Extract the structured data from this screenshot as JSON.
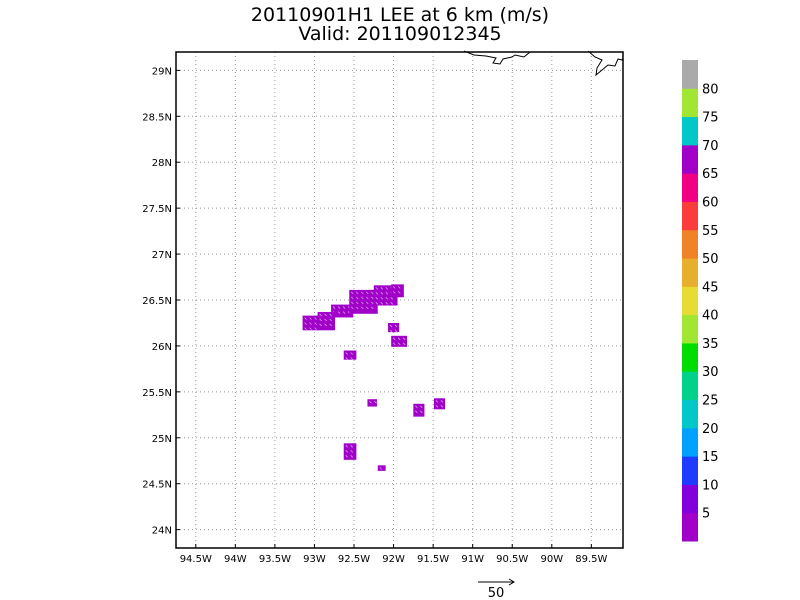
{
  "title": "20110901H1 LEE at 6 km (m/s)",
  "subtitle": "Valid: 201109012345",
  "map": {
    "lon_range": [
      -94.75,
      -89.1
    ],
    "lat_range": [
      23.8,
      29.2
    ],
    "lon_ticks": [
      "94.5W",
      "94W",
      "93.5W",
      "93W",
      "92.5W",
      "92W",
      "91.5W",
      "91W",
      "90.5W",
      "90W",
      "89.5W"
    ],
    "lon_values": [
      -94.5,
      -94,
      -93.5,
      -93,
      -92.5,
      -92,
      -91.5,
      -91,
      -90.5,
      -90,
      -89.5
    ],
    "lat_ticks": [
      "24N",
      "24.5N",
      "25N",
      "25.5N",
      "26N",
      "26.5N",
      "27N",
      "27.5N",
      "28N",
      "28.5N",
      "29N"
    ],
    "lat_values": [
      24,
      24.5,
      25,
      25.5,
      26,
      26.5,
      27,
      27.5,
      28,
      28.5,
      29
    ],
    "grid": "dotted",
    "data_color": "#a000c8",
    "patches": [
      {
        "lon": -92.65,
        "lat": 26.38,
        "dlon": 0.28,
        "dlat": 0.14
      },
      {
        "lon": -92.38,
        "lat": 26.48,
        "dlon": 0.36,
        "dlat": 0.26
      },
      {
        "lon": -92.1,
        "lat": 26.55,
        "dlon": 0.3,
        "dlat": 0.22
      },
      {
        "lon": -91.95,
        "lat": 26.6,
        "dlon": 0.16,
        "dlat": 0.14
      },
      {
        "lon": -92.85,
        "lat": 26.27,
        "dlon": 0.22,
        "dlat": 0.2
      },
      {
        "lon": -93.05,
        "lat": 26.25,
        "dlon": 0.2,
        "dlat": 0.16
      },
      {
        "lon": -92.0,
        "lat": 26.2,
        "dlon": 0.14,
        "dlat": 0.1
      },
      {
        "lon": -91.93,
        "lat": 26.05,
        "dlon": 0.2,
        "dlat": 0.12
      },
      {
        "lon": -92.55,
        "lat": 25.9,
        "dlon": 0.16,
        "dlat": 0.1
      },
      {
        "lon": -92.27,
        "lat": 25.38,
        "dlon": 0.12,
        "dlat": 0.08
      },
      {
        "lon": -91.68,
        "lat": 25.3,
        "dlon": 0.14,
        "dlat": 0.14
      },
      {
        "lon": -91.42,
        "lat": 25.37,
        "dlon": 0.14,
        "dlat": 0.12
      },
      {
        "lon": -92.55,
        "lat": 24.85,
        "dlon": 0.16,
        "dlat": 0.18
      },
      {
        "lon": -92.15,
        "lat": 24.67,
        "dlon": 0.1,
        "dlat": 0.06
      }
    ]
  },
  "colorbar": {
    "colors": [
      "#a000c8",
      "#8200dc",
      "#1e3cff",
      "#00a0ff",
      "#00c8c8",
      "#00d28c",
      "#00dc00",
      "#a0e632",
      "#e6dc32",
      "#e6af2d",
      "#f08228",
      "#fa3c3c",
      "#f00082",
      "#a000c8",
      "#00c8c8",
      "#a0e632",
      "#aaaaaa"
    ],
    "labels": [
      "5",
      "10",
      "15",
      "20",
      "25",
      "30",
      "35",
      "40",
      "45",
      "50",
      "55",
      "60",
      "65",
      "70",
      "75",
      "80"
    ]
  },
  "vector_key": {
    "label": "50"
  }
}
